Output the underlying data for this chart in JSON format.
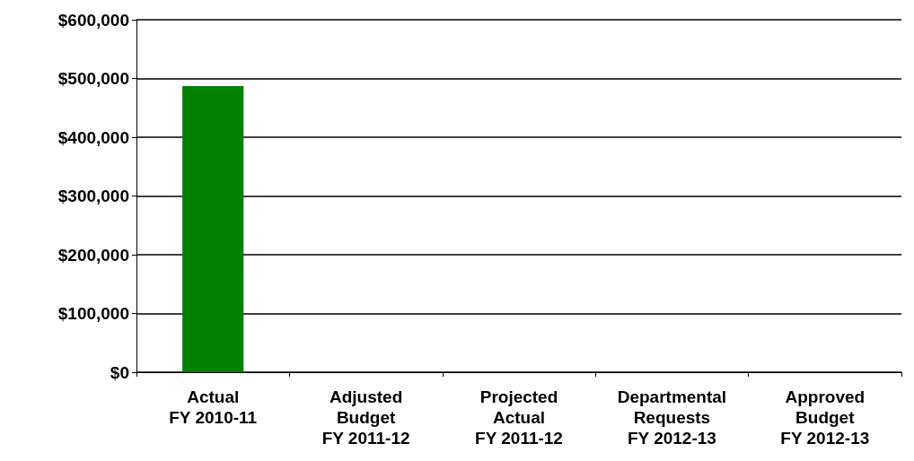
{
  "chart_data": {
    "type": "bar",
    "categories": [
      "Actual\nFY 2010-11",
      "Adjusted\nBudget\nFY 2011-12",
      "Projected\nActual\nFY 2011-12",
      "Departmental\nRequests\nFY 2012-13",
      "Approved\nBudget\nFY 2012-13"
    ],
    "values": [
      487000,
      0,
      0,
      0,
      0
    ],
    "color": "#008000",
    "ylim": [
      0,
      600000
    ],
    "yticks": [
      {
        "value": 0,
        "label": "$0"
      },
      {
        "value": 100000,
        "label": "$100,000"
      },
      {
        "value": 200000,
        "label": "$200,000"
      },
      {
        "value": 300000,
        "label": "$300,000"
      },
      {
        "value": 400000,
        "label": "$400,000"
      },
      {
        "value": 500000,
        "label": "$500,000"
      },
      {
        "value": 600000,
        "label": "$600,000"
      }
    ],
    "grid": "y"
  }
}
